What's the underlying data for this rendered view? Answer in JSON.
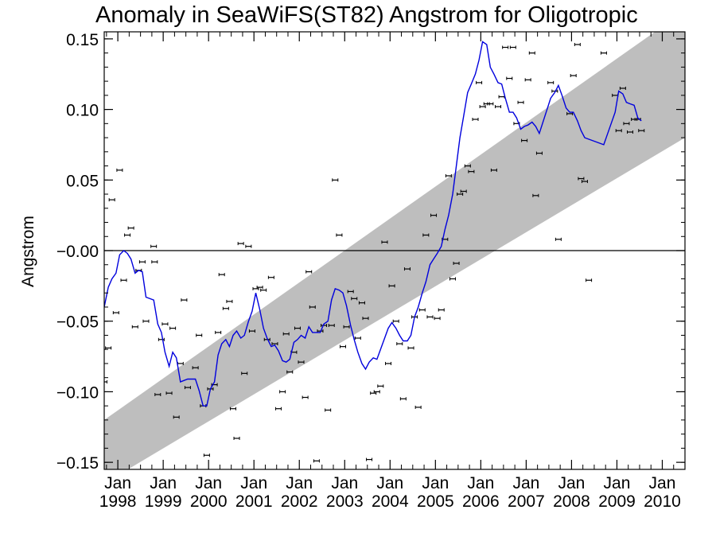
{
  "chart_data": {
    "type": "scatter",
    "title": "Anomaly in SeaWiFS(ST82) Angstrom for Oligotropic",
    "ylabel": "Angstrom",
    "xlabel": "",
    "ylim": [
      -0.155,
      0.155
    ],
    "xlim": [
      1997.7,
      2010.5
    ],
    "yticks": [
      {
        "value": 0.15,
        "label": "0.15"
      },
      {
        "value": 0.1,
        "label": "0.10"
      },
      {
        "value": 0.05,
        "label": "0.05"
      },
      {
        "value": 0.0,
        "label": "−0.00"
      },
      {
        "value": -0.05,
        "label": "−0.05"
      },
      {
        "value": -0.1,
        "label": "−0.10"
      },
      {
        "value": -0.15,
        "label": "−0.15"
      }
    ],
    "xticks": [
      {
        "value": 1998,
        "month": "Jan",
        "year": "1998"
      },
      {
        "value": 1999,
        "month": "Jan",
        "year": "1999"
      },
      {
        "value": 2000,
        "month": "Jan",
        "year": "2000"
      },
      {
        "value": 2001,
        "month": "Jan",
        "year": "2001"
      },
      {
        "value": 2002,
        "month": "Jan",
        "year": "2002"
      },
      {
        "value": 2003,
        "month": "Jan",
        "year": "2003"
      },
      {
        "value": 2004,
        "month": "Jan",
        "year": "2004"
      },
      {
        "value": 2005,
        "month": "Jan",
        "year": "2005"
      },
      {
        "value": 2006,
        "month": "Jan",
        "year": "2006"
      },
      {
        "value": 2007,
        "month": "Jan",
        "year": "2007"
      },
      {
        "value": 2008,
        "month": "Jan",
        "year": "2008"
      },
      {
        "value": 2009,
        "month": "Jan",
        "year": "2009"
      },
      {
        "value": 2010,
        "month": "Jan",
        "year": "2010"
      }
    ],
    "zero_line": 0.0,
    "trend_band": {
      "color": "#bebebe",
      "lower": [
        [
          1997.7,
          -0.165
        ],
        [
          2010.5,
          0.08
        ]
      ],
      "upper": [
        [
          1997.7,
          -0.12
        ],
        [
          2010.5,
          0.17
        ]
      ]
    },
    "series": [
      {
        "role": "monthly_points",
        "color": "#000000",
        "marker": "errorbar",
        "points": [
          [
            1997.7,
            -0.093
          ],
          [
            1997.79,
            -0.069
          ],
          [
            1997.87,
            0.036
          ],
          [
            1997.96,
            -0.044
          ],
          [
            1998.04,
            0.057
          ],
          [
            1998.13,
            -0.021
          ],
          [
            1998.21,
            0.011
          ],
          [
            1998.29,
            0.016
          ],
          [
            1998.38,
            -0.054
          ],
          [
            1998.46,
            -0.014
          ],
          [
            1998.54,
            -0.008
          ],
          [
            1998.62,
            -0.05
          ],
          [
            1998.79,
            0.003
          ],
          [
            1998.81,
            -0.008
          ],
          [
            1998.88,
            -0.102
          ],
          [
            1998.96,
            -0.063
          ],
          [
            1999.04,
            -0.052
          ],
          [
            1999.13,
            -0.101
          ],
          [
            1999.21,
            -0.055
          ],
          [
            1999.29,
            -0.118
          ],
          [
            1999.38,
            -0.08
          ],
          [
            1999.46,
            -0.035
          ],
          [
            1999.54,
            -0.097
          ],
          [
            1999.71,
            -0.083
          ],
          [
            1999.79,
            -0.06
          ],
          [
            1999.88,
            -0.11
          ],
          [
            1999.96,
            -0.145
          ],
          [
            2000.04,
            -0.098
          ],
          [
            2000.13,
            -0.095
          ],
          [
            2000.21,
            -0.058
          ],
          [
            2000.29,
            -0.017
          ],
          [
            2000.38,
            -0.041
          ],
          [
            2000.46,
            -0.036
          ],
          [
            2000.54,
            -0.112
          ],
          [
            2000.62,
            -0.133
          ],
          [
            2000.71,
            0.005
          ],
          [
            2000.79,
            -0.087
          ],
          [
            2000.88,
            0.003
          ],
          [
            2000.96,
            -0.057
          ],
          [
            2001.04,
            -0.027
          ],
          [
            2001.13,
            -0.026
          ],
          [
            2001.21,
            -0.028
          ],
          [
            2001.29,
            -0.063
          ],
          [
            2001.38,
            -0.019
          ],
          [
            2001.46,
            -0.066
          ],
          [
            2001.54,
            -0.112
          ],
          [
            2001.63,
            -0.1
          ],
          [
            2001.71,
            -0.059
          ],
          [
            2001.79,
            -0.086
          ],
          [
            2001.88,
            -0.072
          ],
          [
            2001.96,
            -0.055
          ],
          [
            2002.04,
            -0.079
          ],
          [
            2002.13,
            -0.104
          ],
          [
            2002.21,
            -0.015
          ],
          [
            2002.29,
            -0.04
          ],
          [
            2002.38,
            -0.149
          ],
          [
            2002.46,
            -0.057
          ],
          [
            2002.54,
            -0.053
          ],
          [
            2002.63,
            -0.113
          ],
          [
            2002.71,
            -0.053
          ],
          [
            2002.79,
            0.05
          ],
          [
            2002.88,
            0.011
          ],
          [
            2002.96,
            -0.068
          ],
          [
            2003.04,
            -0.054
          ],
          [
            2003.13,
            -0.029
          ],
          [
            2003.21,
            -0.034
          ],
          [
            2003.29,
            -0.062
          ],
          [
            2003.38,
            -0.037
          ],
          [
            2003.46,
            -0.048
          ],
          [
            2003.54,
            -0.148
          ],
          [
            2003.63,
            -0.101
          ],
          [
            2003.71,
            -0.1
          ],
          [
            2003.79,
            -0.096
          ],
          [
            2003.88,
            0.006
          ],
          [
            2003.96,
            -0.08
          ],
          [
            2004.04,
            -0.025
          ],
          [
            2004.13,
            -0.05
          ],
          [
            2004.21,
            -0.066
          ],
          [
            2004.29,
            -0.105
          ],
          [
            2004.38,
            -0.013
          ],
          [
            2004.46,
            -0.069
          ],
          [
            2004.54,
            -0.047
          ],
          [
            2004.62,
            -0.111
          ],
          [
            2004.71,
            -0.042
          ],
          [
            2004.79,
            0.011
          ],
          [
            2004.88,
            -0.047
          ],
          [
            2004.96,
            0.025
          ],
          [
            2005.04,
            -0.048
          ],
          [
            2005.13,
            -0.042
          ],
          [
            2005.21,
            0.008
          ],
          [
            2005.29,
            0.053
          ],
          [
            2005.38,
            -0.02
          ],
          [
            2005.46,
            -0.009
          ],
          [
            2005.54,
            0.04
          ],
          [
            2005.62,
            0.042
          ],
          [
            2005.71,
            0.06
          ],
          [
            2005.79,
            0.056
          ],
          [
            2005.88,
            0.093
          ],
          [
            2005.96,
            0.119
          ],
          [
            2006.04,
            0.102
          ],
          [
            2006.13,
            0.104
          ],
          [
            2006.21,
            0.104
          ],
          [
            2006.29,
            0.057
          ],
          [
            2006.38,
            0.102
          ],
          [
            2006.46,
            0.109
          ],
          [
            2006.54,
            0.144
          ],
          [
            2006.63,
            0.122
          ],
          [
            2006.71,
            0.144
          ],
          [
            2006.79,
            0.09
          ],
          [
            2006.88,
            0.105
          ],
          [
            2006.96,
            0.078
          ],
          [
            2007.04,
            0.121
          ],
          [
            2007.13,
            0.14
          ],
          [
            2007.21,
            0.039
          ],
          [
            2007.29,
            0.069
          ],
          [
            2007.54,
            0.119
          ],
          [
            2007.63,
            0.113
          ],
          [
            2007.71,
            0.008
          ],
          [
            2007.96,
            0.097
          ],
          [
            2008.04,
            0.124
          ],
          [
            2008.13,
            0.146
          ],
          [
            2008.21,
            0.051
          ],
          [
            2008.29,
            0.049
          ],
          [
            2008.38,
            -0.021
          ],
          [
            2008.71,
            0.14
          ],
          [
            2008.96,
            0.11
          ],
          [
            2009.04,
            0.085
          ],
          [
            2009.13,
            0.115
          ],
          [
            2009.21,
            0.09
          ],
          [
            2009.29,
            0.084
          ],
          [
            2009.38,
            0.093
          ],
          [
            2009.46,
            0.093
          ],
          [
            2009.54,
            0.085
          ]
        ]
      },
      {
        "role": "running_mean",
        "color": "#0000dd",
        "points": [
          [
            1997.7,
            -0.04
          ],
          [
            1997.79,
            -0.026
          ],
          [
            1997.87,
            -0.02
          ],
          [
            1997.96,
            -0.016
          ],
          [
            1998.04,
            -0.003
          ],
          [
            1998.13,
            0.0
          ],
          [
            1998.21,
            -0.002
          ],
          [
            1998.29,
            -0.006
          ],
          [
            1998.38,
            -0.016
          ],
          [
            1998.46,
            -0.014
          ],
          [
            1998.54,
            -0.015
          ],
          [
            1998.62,
            -0.033
          ],
          [
            1998.79,
            -0.035
          ],
          [
            1998.88,
            -0.052
          ],
          [
            1998.96,
            -0.058
          ],
          [
            1999.04,
            -0.072
          ],
          [
            1999.13,
            -0.082
          ],
          [
            1999.21,
            -0.072
          ],
          [
            1999.29,
            -0.076
          ],
          [
            1999.38,
            -0.093
          ],
          [
            1999.46,
            -0.092
          ],
          [
            1999.54,
            -0.091
          ],
          [
            1999.71,
            -0.091
          ],
          [
            1999.79,
            -0.099
          ],
          [
            1999.88,
            -0.11
          ],
          [
            1999.96,
            -0.11
          ],
          [
            2000.04,
            -0.098
          ],
          [
            2000.13,
            -0.093
          ],
          [
            2000.21,
            -0.074
          ],
          [
            2000.29,
            -0.066
          ],
          [
            2000.38,
            -0.063
          ],
          [
            2000.46,
            -0.068
          ],
          [
            2000.54,
            -0.06
          ],
          [
            2000.62,
            -0.057
          ],
          [
            2000.71,
            -0.062
          ],
          [
            2000.79,
            -0.06
          ],
          [
            2000.88,
            -0.05
          ],
          [
            2000.96,
            -0.043
          ],
          [
            2001.04,
            -0.03
          ],
          [
            2001.13,
            -0.042
          ],
          [
            2001.21,
            -0.055
          ],
          [
            2001.29,
            -0.062
          ],
          [
            2001.38,
            -0.068
          ],
          [
            2001.46,
            -0.067
          ],
          [
            2001.54,
            -0.071
          ],
          [
            2001.63,
            -0.078
          ],
          [
            2001.71,
            -0.079
          ],
          [
            2001.79,
            -0.077
          ],
          [
            2001.88,
            -0.065
          ],
          [
            2001.96,
            -0.063
          ],
          [
            2002.04,
            -0.06
          ],
          [
            2002.13,
            -0.062
          ],
          [
            2002.21,
            -0.054
          ],
          [
            2002.29,
            -0.058
          ],
          [
            2002.38,
            -0.058
          ],
          [
            2002.46,
            -0.058
          ],
          [
            2002.54,
            -0.052
          ],
          [
            2002.63,
            -0.05
          ],
          [
            2002.71,
            -0.035
          ],
          [
            2002.79,
            -0.027
          ],
          [
            2002.88,
            -0.028
          ],
          [
            2002.96,
            -0.03
          ],
          [
            2003.04,
            -0.039
          ],
          [
            2003.13,
            -0.053
          ],
          [
            2003.21,
            -0.063
          ],
          [
            2003.29,
            -0.072
          ],
          [
            2003.38,
            -0.08
          ],
          [
            2003.46,
            -0.084
          ],
          [
            2003.54,
            -0.079
          ],
          [
            2003.63,
            -0.076
          ],
          [
            2003.71,
            -0.077
          ],
          [
            2003.79,
            -0.07
          ],
          [
            2003.88,
            -0.062
          ],
          [
            2003.96,
            -0.055
          ],
          [
            2004.04,
            -0.051
          ],
          [
            2004.13,
            -0.055
          ],
          [
            2004.21,
            -0.06
          ],
          [
            2004.29,
            -0.064
          ],
          [
            2004.38,
            -0.064
          ],
          [
            2004.46,
            -0.06
          ],
          [
            2004.54,
            -0.047
          ],
          [
            2004.62,
            -0.04
          ],
          [
            2004.71,
            -0.03
          ],
          [
            2004.79,
            -0.022
          ],
          [
            2004.88,
            -0.01
          ],
          [
            2004.96,
            -0.006
          ],
          [
            2005.04,
            -0.002
          ],
          [
            2005.13,
            0.003
          ],
          [
            2005.21,
            0.015
          ],
          [
            2005.29,
            0.025
          ],
          [
            2005.38,
            0.04
          ],
          [
            2005.46,
            0.06
          ],
          [
            2005.54,
            0.08
          ],
          [
            2005.62,
            0.095
          ],
          [
            2005.71,
            0.112
          ],
          [
            2005.79,
            0.118
          ],
          [
            2005.88,
            0.125
          ],
          [
            2005.96,
            0.135
          ],
          [
            2006.04,
            0.148
          ],
          [
            2006.13,
            0.146
          ],
          [
            2006.21,
            0.13
          ],
          [
            2006.29,
            0.125
          ],
          [
            2006.38,
            0.119
          ],
          [
            2006.46,
            0.118
          ],
          [
            2006.54,
            0.108
          ],
          [
            2006.63,
            0.098
          ],
          [
            2006.71,
            0.098
          ],
          [
            2006.79,
            0.094
          ],
          [
            2006.88,
            0.086
          ],
          [
            2006.96,
            0.088
          ],
          [
            2007.04,
            0.089
          ],
          [
            2007.13,
            0.091
          ],
          [
            2007.21,
            0.088
          ],
          [
            2007.29,
            0.083
          ],
          [
            2007.54,
            0.108
          ],
          [
            2007.63,
            0.112
          ],
          [
            2007.71,
            0.117
          ],
          [
            2007.79,
            0.11
          ],
          [
            2007.88,
            0.101
          ],
          [
            2007.96,
            0.098
          ],
          [
            2008.04,
            0.098
          ],
          [
            2008.13,
            0.092
          ],
          [
            2008.21,
            0.085
          ],
          [
            2008.29,
            0.08
          ],
          [
            2008.71,
            0.075
          ],
          [
            2008.96,
            0.098
          ],
          [
            2009.04,
            0.113
          ],
          [
            2009.13,
            0.111
          ],
          [
            2009.21,
            0.105
          ],
          [
            2009.29,
            0.104
          ],
          [
            2009.38,
            0.103
          ],
          [
            2009.46,
            0.094
          ],
          [
            2009.54,
            0.092
          ]
        ]
      }
    ]
  }
}
